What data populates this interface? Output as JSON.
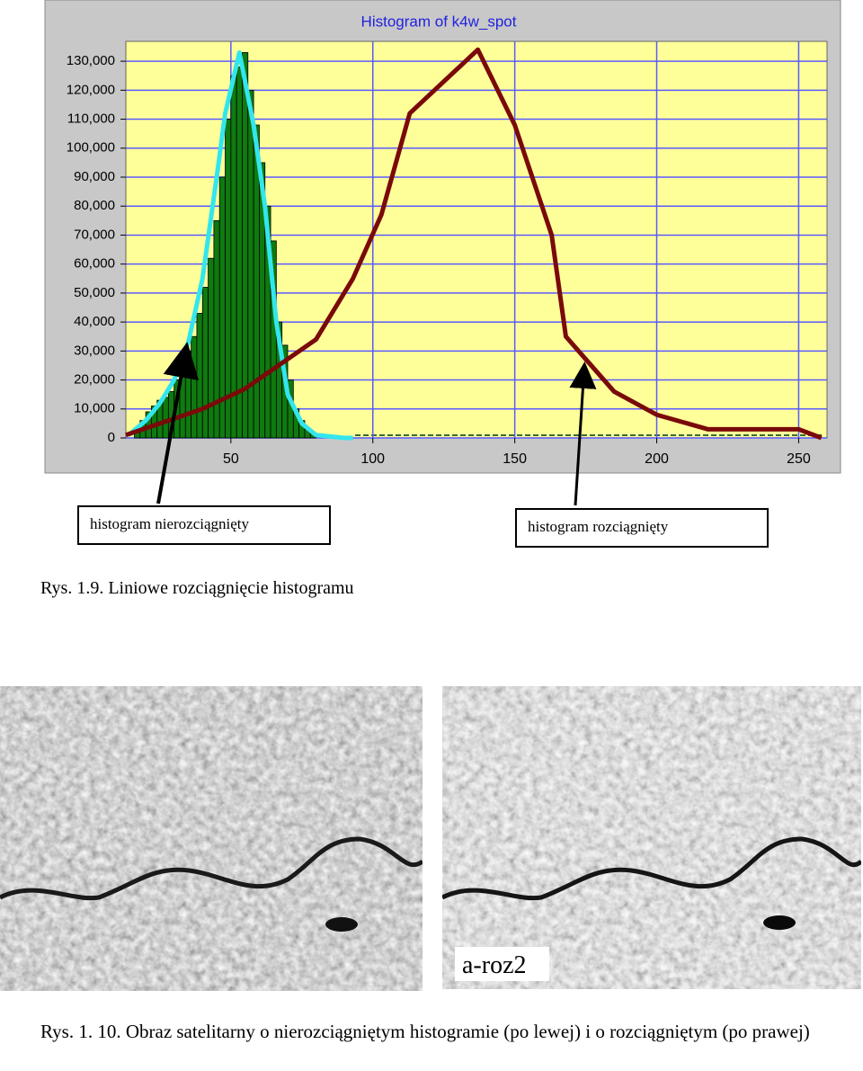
{
  "chart_data": {
    "type": "histogram",
    "title": "Histogram of k4w_spot",
    "bins": [
      16,
      18,
      20,
      22,
      24,
      26,
      28,
      30,
      32,
      34,
      36,
      38,
      40,
      42,
      44,
      46,
      48,
      50,
      52,
      54,
      56,
      58,
      60,
      62,
      64,
      66,
      68,
      70,
      72,
      74,
      76,
      78,
      80
    ],
    "values": [
      3000,
      6000,
      9000,
      11000,
      13000,
      14000,
      16000,
      20000,
      25000,
      30000,
      35000,
      43000,
      52000,
      62000,
      75000,
      90000,
      110000,
      125000,
      128000,
      133000,
      120000,
      108000,
      95000,
      80000,
      68000,
      40000,
      32000,
      20000,
      10000,
      6000,
      3000,
      1500
    ],
    "color": "#0f7a0f",
    "lines": [
      {
        "color": "#33e6ee",
        "x": [
          14,
          20,
          25,
          30,
          35,
          40,
          45,
          48,
          53,
          58,
          62,
          66,
          70,
          75,
          80,
          85,
          90,
          93
        ],
        "values": [
          1000,
          6000,
          12000,
          20000,
          33000,
          55000,
          90000,
          112000,
          133000,
          108000,
          80000,
          40000,
          15000,
          5000,
          1000,
          500,
          0,
          0
        ]
      },
      {
        "color": "#7a0a0a",
        "x": [
          13,
          25,
          40,
          55,
          80,
          93,
          103,
          113,
          137,
          150,
          163,
          168,
          185,
          200,
          218,
          250,
          258
        ],
        "values": [
          1000,
          5000,
          10000,
          17000,
          34000,
          55000,
          77000,
          112000,
          134000,
          108000,
          70000,
          35000,
          16000,
          8000,
          3000,
          3000,
          0
        ]
      }
    ],
    "xlim": [
      13,
      260
    ],
    "ylim": [
      0,
      135000
    ],
    "xticks": [
      50,
      100,
      150,
      200,
      250
    ],
    "yticks": [
      0,
      {
        "value": 10000,
        "label": "10,000"
      },
      {
        "value": 20000,
        "label": "20,000"
      },
      {
        "value": 30000,
        "label": "30,000"
      },
      {
        "value": 40000,
        "label": "40,000"
      },
      {
        "value": 50000,
        "label": "50,000"
      },
      {
        "value": 60000,
        "label": "60,000"
      },
      {
        "value": 70000,
        "label": "70,000"
      },
      {
        "value": 80000,
        "label": "80,000"
      },
      {
        "value": 90000,
        "label": "90,000"
      },
      {
        "value": 100000,
        "label": "100,000"
      },
      {
        "value": 110000,
        "label": "110,000"
      },
      {
        "value": 120000,
        "label": "120,000"
      },
      {
        "value": 130000,
        "label": "130,000"
      }
    ],
    "grid": true
  },
  "callouts": [
    "histogram nierozciągnięty",
    "histogram rozciągnięty"
  ],
  "captions": [
    "Rys. 1.9. Liniowe rozciągnięcie histogramu",
    "Rys. 1. 10.  Obraz satelitarny o nierozciągniętym histogramie (po lewej) i o rozciągniętym (po prawej)"
  ],
  "image_label": "a-roz2"
}
